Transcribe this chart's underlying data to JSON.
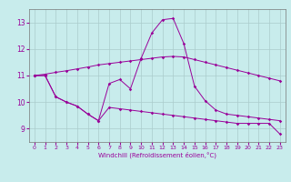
{
  "background_color": "#c8ecec",
  "line_color": "#990099",
  "grid_color": "#aacccc",
  "xlabel": "Windchill (Refroidissement éolien,°C)",
  "xlim": [
    -0.5,
    23.5
  ],
  "ylim": [
    8.5,
    13.5
  ],
  "x_ticks": [
    0,
    1,
    2,
    3,
    4,
    5,
    6,
    7,
    8,
    9,
    10,
    11,
    12,
    13,
    14,
    15,
    16,
    17,
    18,
    19,
    20,
    21,
    22,
    23
  ],
  "y_ticks": [
    9,
    10,
    11,
    12,
    13
  ],
  "line1_y": [
    11.0,
    11.0,
    10.2,
    10.0,
    9.85,
    9.55,
    9.3,
    9.8,
    9.75,
    9.7,
    9.65,
    9.6,
    9.55,
    9.5,
    9.45,
    9.4,
    9.35,
    9.3,
    9.25,
    9.2,
    9.2,
    9.2,
    9.2,
    8.8
  ],
  "line2_y": [
    11.0,
    11.05,
    11.12,
    11.18,
    11.25,
    11.32,
    11.4,
    11.45,
    11.5,
    11.55,
    11.6,
    11.65,
    11.7,
    11.72,
    11.7,
    11.6,
    11.5,
    11.4,
    11.3,
    11.2,
    11.1,
    11.0,
    10.9,
    10.8
  ],
  "line3_y": [
    11.0,
    11.0,
    10.2,
    10.0,
    9.85,
    9.55,
    9.3,
    10.7,
    10.85,
    10.5,
    11.65,
    12.6,
    13.1,
    13.15,
    12.2,
    10.6,
    10.05,
    9.7,
    9.55,
    9.5,
    9.45,
    9.4,
    9.35,
    9.3
  ]
}
